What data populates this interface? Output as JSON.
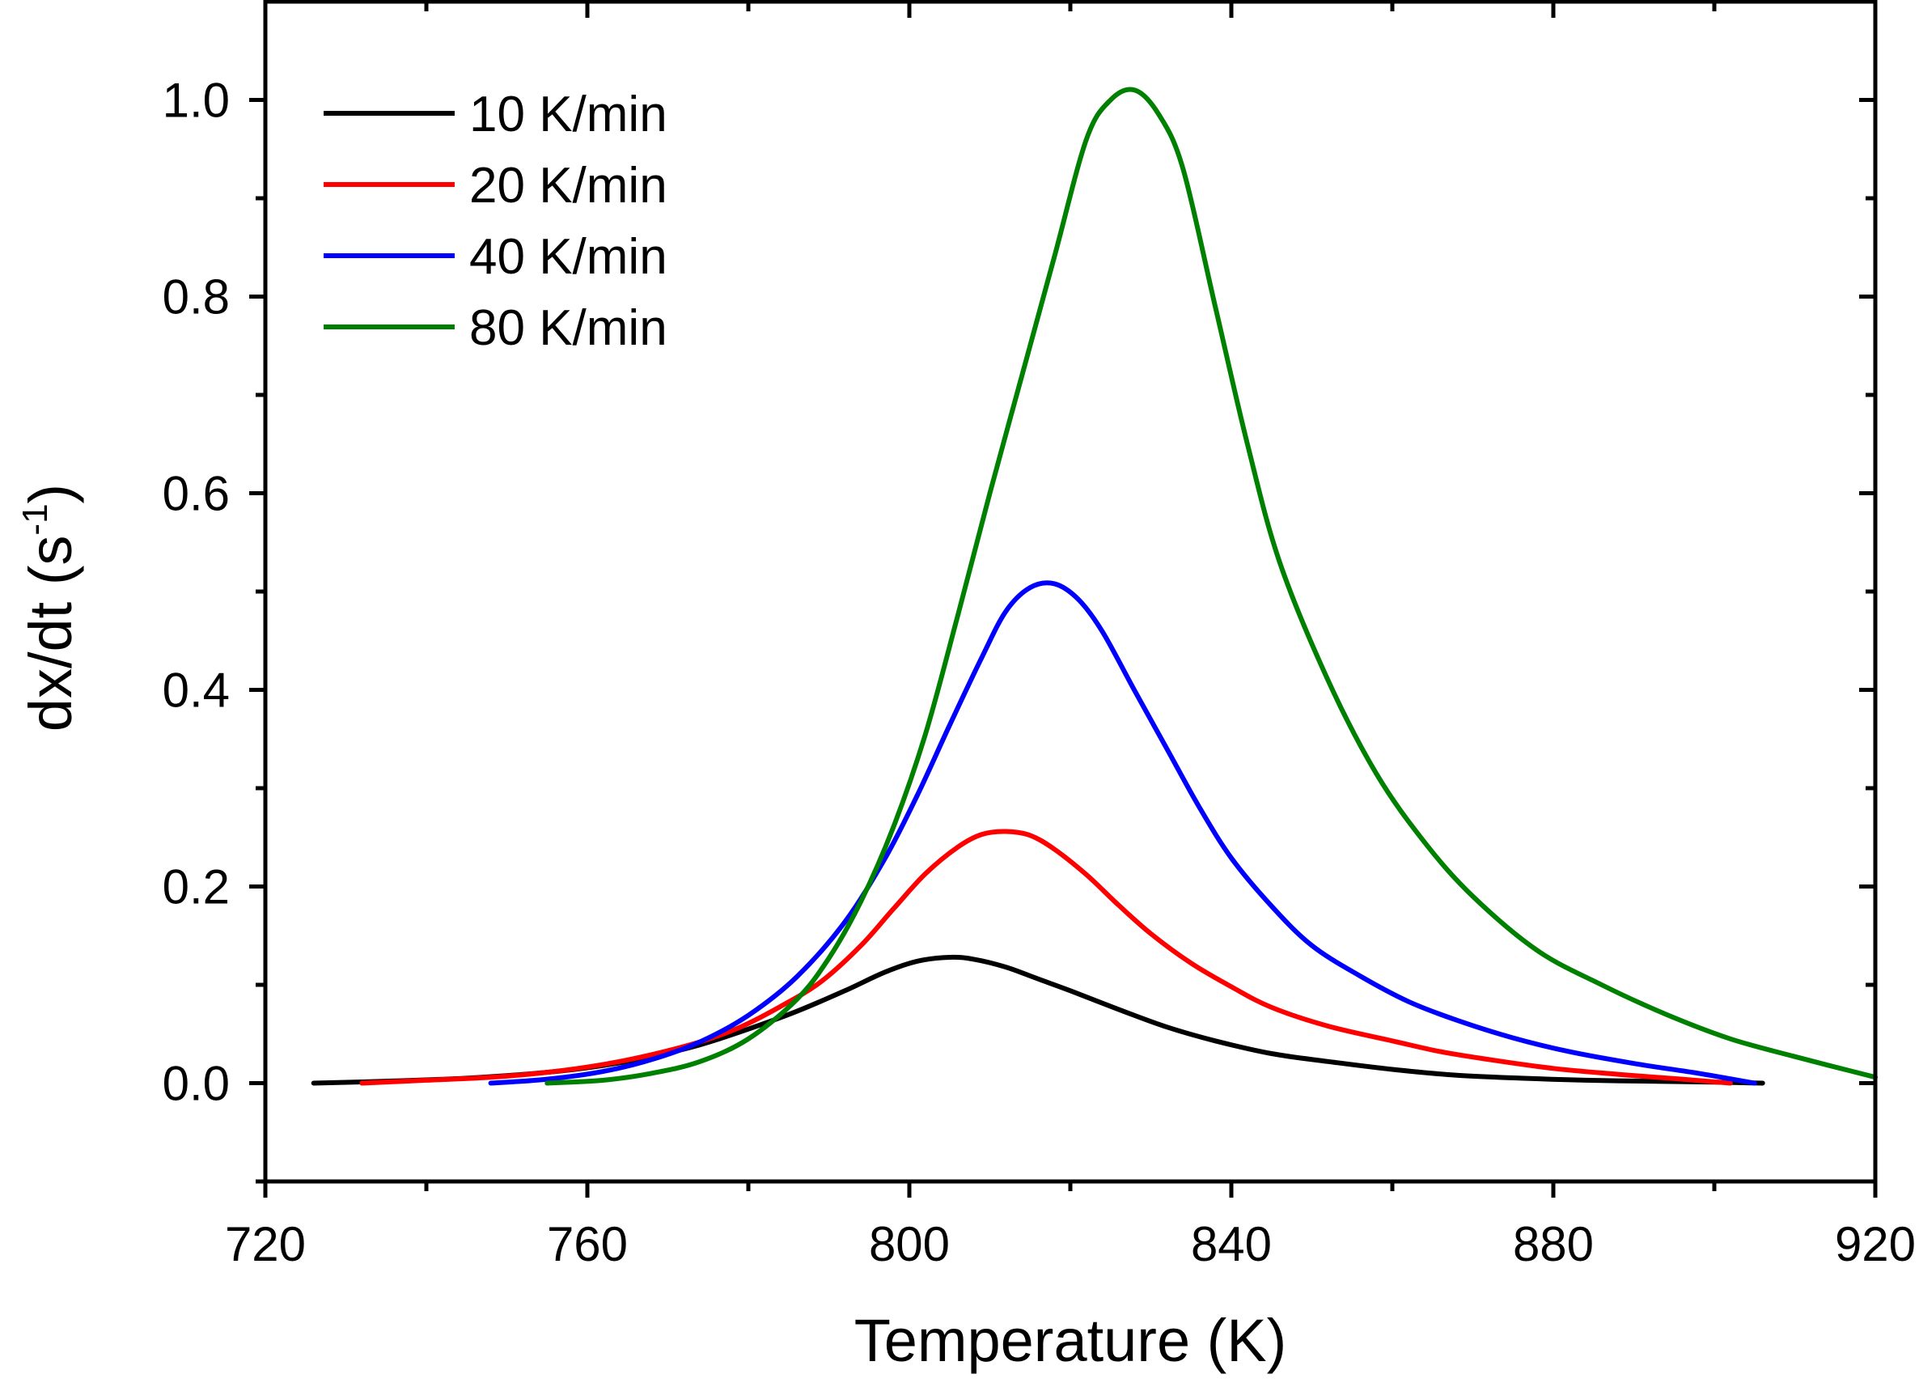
{
  "chart_data": {
    "type": "line",
    "title": "",
    "xlabel": "Temperature (K)",
    "ylabel_main": "dx/dt (s",
    "ylabel_sup": "-1",
    "ylabel_close": ")",
    "xlim": [
      720,
      920
    ],
    "ylim": [
      -0.1,
      1.1
    ],
    "xticks": [
      720,
      760,
      800,
      840,
      880,
      920
    ],
    "xtick_labels": [
      "720",
      "760",
      "800",
      "840",
      "880",
      "920"
    ],
    "xminor_ticks": [
      740,
      780,
      820,
      860,
      900
    ],
    "yticks": [
      0.0,
      0.2,
      0.4,
      0.6,
      0.8,
      1.0
    ],
    "ytick_labels": [
      "0.0",
      "0.2",
      "0.4",
      "0.6",
      "0.8",
      "1.0"
    ],
    "yminor_ticks": [
      -0.1,
      0.1,
      0.3,
      0.5,
      0.7,
      0.9
    ],
    "legend_position": "top-left",
    "grid": false,
    "series": [
      {
        "name": "10 K/min",
        "color": "#000000",
        "x": [
          726,
          735,
          745,
          755,
          762,
          768,
          774,
          780,
          786,
          792,
          797,
          801,
          805,
          808,
          812,
          816,
          820,
          826,
          832,
          838,
          845,
          852,
          860,
          868,
          876,
          884,
          892,
          900,
          906
        ],
        "y": [
          0.0,
          0.002,
          0.005,
          0.011,
          0.018,
          0.027,
          0.039,
          0.055,
          0.073,
          0.094,
          0.113,
          0.124,
          0.128,
          0.126,
          0.118,
          0.106,
          0.094,
          0.075,
          0.057,
          0.043,
          0.03,
          0.022,
          0.014,
          0.008,
          0.005,
          0.003,
          0.002,
          0.001,
          0.0
        ]
      },
      {
        "name": "20 K/min",
        "color": "#ff0000",
        "x": [
          732,
          740,
          748,
          755,
          762,
          768,
          774,
          779,
          784,
          789,
          794,
          798,
          802,
          806,
          809,
          812,
          815,
          818,
          822,
          826,
          830,
          835,
          840,
          845,
          852,
          860,
          866,
          872,
          880,
          888,
          896,
          902
        ],
        "y": [
          0.0,
          0.003,
          0.006,
          0.011,
          0.019,
          0.029,
          0.042,
          0.057,
          0.078,
          0.103,
          0.14,
          0.177,
          0.213,
          0.24,
          0.253,
          0.256,
          0.252,
          0.238,
          0.212,
          0.181,
          0.152,
          0.122,
          0.098,
          0.077,
          0.058,
          0.043,
          0.032,
          0.024,
          0.015,
          0.009,
          0.004,
          0.0
        ]
      },
      {
        "name": "40 K/min",
        "color": "#0000ff",
        "x": [
          748,
          755,
          762,
          768,
          774,
          780,
          786,
          792,
          797,
          801,
          805,
          809,
          812,
          815,
          818,
          821,
          824,
          828,
          832,
          836,
          840,
          845,
          850,
          856,
          862,
          868,
          875,
          882,
          890,
          898,
          905
        ],
        "y": [
          0.0,
          0.004,
          0.012,
          0.024,
          0.042,
          0.069,
          0.108,
          0.164,
          0.229,
          0.293,
          0.364,
          0.433,
          0.48,
          0.504,
          0.508,
          0.492,
          0.459,
          0.399,
          0.34,
          0.281,
          0.229,
          0.18,
          0.14,
          0.109,
          0.083,
          0.064,
          0.046,
          0.032,
          0.02,
          0.01,
          0.0
        ]
      },
      {
        "name": "80 K/min",
        "color": "#008000",
        "x": [
          755,
          762,
          768,
          774,
          780,
          786,
          790,
          794,
          798,
          802,
          806,
          810,
          814,
          818,
          822,
          825,
          828,
          831,
          834,
          838,
          842,
          846,
          852,
          858,
          864,
          870,
          878,
          886,
          894,
          902,
          910,
          920
        ],
        "y": [
          0.0,
          0.003,
          0.01,
          0.022,
          0.045,
          0.085,
          0.127,
          0.185,
          0.26,
          0.355,
          0.475,
          0.6,
          0.72,
          0.84,
          0.96,
          1.0,
          1.01,
          0.985,
          0.93,
          0.79,
          0.65,
          0.53,
          0.41,
          0.315,
          0.245,
          0.19,
          0.135,
          0.1,
          0.07,
          0.045,
          0.027,
          0.006
        ]
      }
    ]
  }
}
